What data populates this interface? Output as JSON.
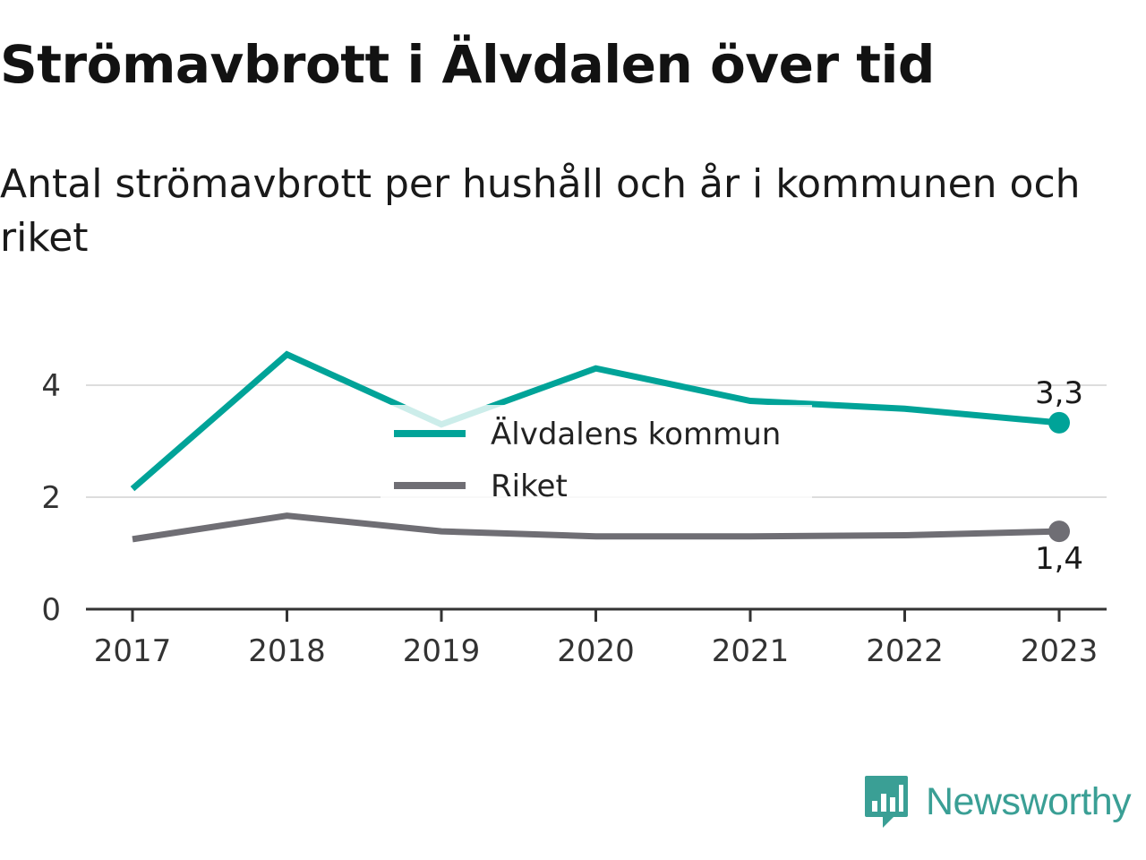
{
  "title": "Strömavbrott i Älvdalen över tid",
  "subtitle": "Antal strömavbrott per hushåll och år i kommunen och riket",
  "brand": {
    "name": "Newsworthy",
    "icon": "newsworthy-logo-icon",
    "color": "#3a9f95"
  },
  "chart_data": {
    "type": "line",
    "x": [
      "2017",
      "2018",
      "2019",
      "2020",
      "2021",
      "2022",
      "2023"
    ],
    "series": [
      {
        "name": "Älvdalens kommun",
        "color": "#00a398",
        "values": [
          2.15,
          4.55,
          3.3,
          4.3,
          3.72,
          3.58,
          3.33
        ],
        "end_label": "3,3"
      },
      {
        "name": "Riket",
        "color": "#6f6e74",
        "values": [
          1.25,
          1.67,
          1.39,
          1.3,
          1.3,
          1.32,
          1.39
        ],
        "end_label": "1,4"
      }
    ],
    "y_ticks": [
      "0",
      "2",
      "4"
    ],
    "ylim": [
      0,
      4.8
    ],
    "grid": true,
    "legend_position": "center"
  }
}
